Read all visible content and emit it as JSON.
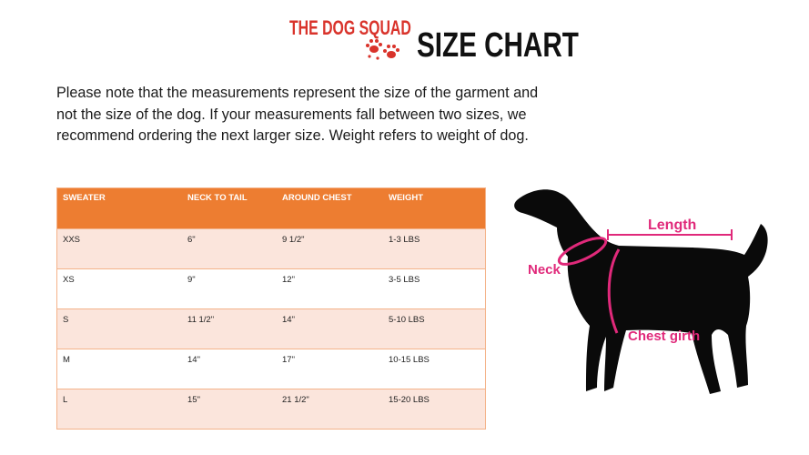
{
  "brand": {
    "name": "THE DOG SQUAD",
    "color": "#d9332b",
    "icon": "paw-prints-icon"
  },
  "title": "SIZE CHART",
  "note": "Please note that the measurements represent the size of the garment and not the size of the dog. If your measurements fall between two sizes, we recommend ordering the next larger size. Weight refers to weight of dog.",
  "table": {
    "header_color": "#ed7d31",
    "columns": [
      "SWEATER",
      "NECK TO TAIL",
      "AROUND CHEST",
      "WEIGHT"
    ],
    "rows": [
      [
        "XXS",
        "6\"",
        "9 1/2\"",
        "1-3 LBS"
      ],
      [
        "XS",
        "9\"",
        "12\"",
        "3-5 LBS"
      ],
      [
        "S",
        "11 1/2\"",
        "14\"",
        "5-10 LBS"
      ],
      [
        "M",
        "14\"",
        "17\"",
        "10-15 LBS"
      ],
      [
        "L",
        "15\"",
        "21 1/2\"",
        "15-20 LBS"
      ]
    ]
  },
  "diagram": {
    "accent": "#e0297a",
    "labels": {
      "length": "Length",
      "neck": "Neck",
      "chest": "Chest girth"
    }
  }
}
